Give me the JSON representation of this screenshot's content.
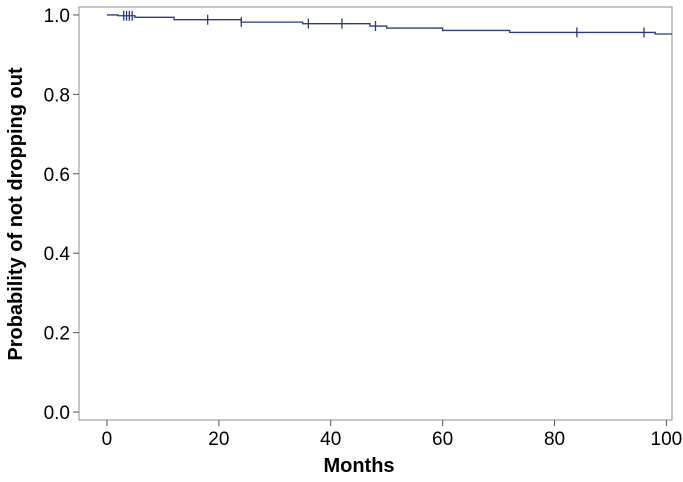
{
  "chart_data": {
    "type": "line",
    "title": "",
    "xlabel": "Months",
    "ylabel": "Probability of not dropping out",
    "xlim": [
      -5,
      101
    ],
    "ylim": [
      -0.02,
      1.02
    ],
    "x_ticks": [
      0,
      20,
      40,
      60,
      80,
      100
    ],
    "x_tick_labels": [
      "0",
      "20",
      "40",
      "60",
      "80",
      "100"
    ],
    "y_ticks": [
      0.0,
      0.2,
      0.4,
      0.6,
      0.8,
      1.0
    ],
    "y_tick_labels": [
      "0.0",
      "0.2",
      "0.4",
      "0.6",
      "0.8",
      "1.0"
    ],
    "grid": false,
    "step": true,
    "line_color": "#2b3a7a",
    "series": [
      {
        "x": [
          0,
          2,
          5,
          12,
          24,
          35,
          47,
          50,
          60,
          72,
          84,
          90,
          98,
          101
        ],
        "y": [
          1.0,
          0.998,
          0.994,
          0.988,
          0.982,
          0.978,
          0.972,
          0.967,
          0.961,
          0.956,
          0.956,
          0.956,
          0.952,
          0.952
        ],
        "censor_x": [
          3,
          3.5,
          4,
          4.5,
          18,
          24,
          36,
          42,
          48,
          84,
          96
        ],
        "censor_y": [
          0.998,
          0.998,
          0.998,
          0.998,
          0.988,
          0.982,
          0.978,
          0.978,
          0.972,
          0.956,
          0.956
        ]
      }
    ]
  }
}
